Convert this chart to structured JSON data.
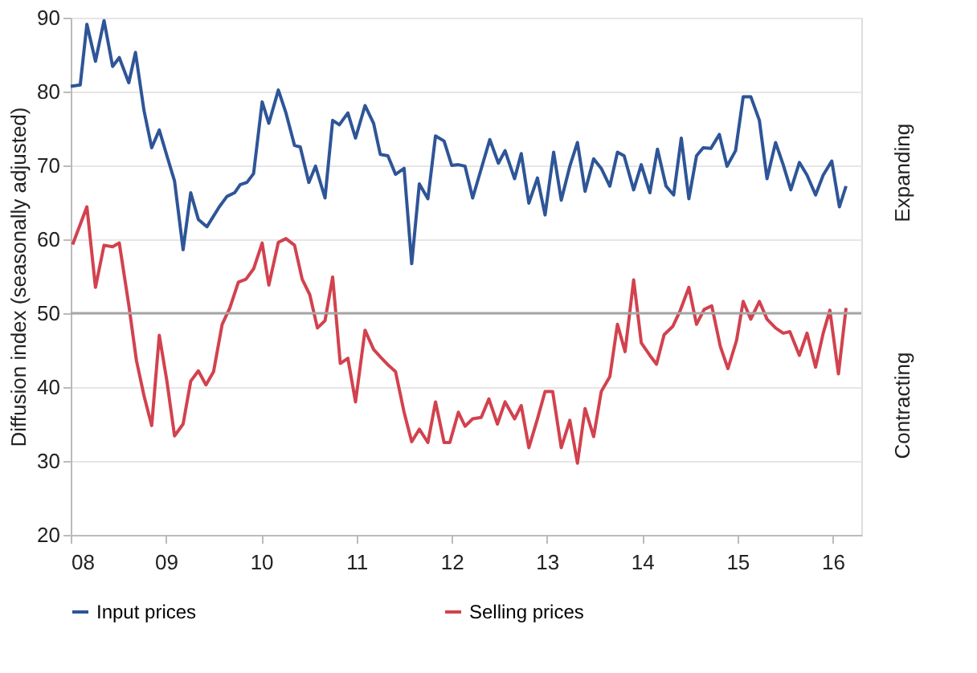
{
  "chart_data": {
    "type": "line",
    "ylabel": "Diffusion index (seasonally adjusted)",
    "xlim": [
      2008,
      2016.3
    ],
    "xticks": [
      {
        "value": 2008,
        "label": "08"
      },
      {
        "value": 2009,
        "label": "09"
      },
      {
        "value": 2010,
        "label": "10"
      },
      {
        "value": 2011,
        "label": "11"
      },
      {
        "value": 2012,
        "label": "12"
      },
      {
        "value": 2013,
        "label": "13"
      },
      {
        "value": 2014,
        "label": "14"
      },
      {
        "value": 2015,
        "label": "15"
      },
      {
        "value": 2016,
        "label": "16"
      }
    ],
    "ylim": [
      20,
      90
    ],
    "yticks": [
      20,
      30,
      40,
      50,
      60,
      70,
      80,
      90
    ],
    "grid": "y",
    "legend": "bottom",
    "marker": "none",
    "line_style": "solid",
    "ref_lines": [
      {
        "axis": "y",
        "value": 50,
        "color": "#a6a6a6"
      }
    ],
    "annotations": [
      "Expanding",
      "Contracting"
    ],
    "series": [
      {
        "name": "Input prices",
        "color": "#2e5597",
        "x": [
          2008.0,
          2008.1,
          2008.17,
          2008.26,
          2008.35,
          2008.44,
          2008.51,
          2008.61,
          2008.68,
          2008.77,
          2008.85,
          2008.93,
          2009.01,
          2009.09,
          2009.18,
          2009.26,
          2009.34,
          2009.43,
          2009.56,
          2009.64,
          2009.72,
          2009.78,
          2009.85,
          2009.92,
          2010.01,
          2010.08,
          2010.18,
          2010.26,
          2010.35,
          2010.41,
          2010.5,
          2010.57,
          2010.67,
          2010.75,
          2010.82,
          2010.91,
          2010.99,
          2011.09,
          2011.18,
          2011.25,
          2011.33,
          2011.41,
          2011.5,
          2011.58,
          2011.66,
          2011.75,
          2011.83,
          2011.92,
          2012.0,
          2012.07,
          2012.14,
          2012.22,
          2012.4,
          2012.49,
          2012.56,
          2012.66,
          2012.73,
          2012.81,
          2012.9,
          2012.98,
          2013.07,
          2013.15,
          2013.24,
          2013.32,
          2013.4,
          2013.49,
          2013.57,
          2013.66,
          2013.74,
          2013.81,
          2013.91,
          2013.99,
          2014.08,
          2014.16,
          2014.25,
          2014.33,
          2014.41,
          2014.49,
          2014.57,
          2014.64,
          2014.72,
          2014.81,
          2014.89,
          2014.98,
          2015.06,
          2015.14,
          2015.23,
          2015.31,
          2015.4,
          2015.48,
          2015.56,
          2015.65,
          2015.73,
          2015.82,
          2015.9,
          2015.99,
          2016.07,
          2016.14
        ],
        "values": [
          80.7,
          80.9,
          89.1,
          84.1,
          89.6,
          83.4,
          84.6,
          81.2,
          85.3,
          77.4,
          72.4,
          74.8,
          71.3,
          67.9,
          58.6,
          66.3,
          62.7,
          61.7,
          64.4,
          65.8,
          66.3,
          67.4,
          67.7,
          68.9,
          78.6,
          75.7,
          80.2,
          77.1,
          72.7,
          72.5,
          67.7,
          69.9,
          65.6,
          76.1,
          75.5,
          77.1,
          73.7,
          78.1,
          75.7,
          71.5,
          71.3,
          68.8,
          69.6,
          56.7,
          67.5,
          65.5,
          74.0,
          73.3,
          70.0,
          70.1,
          69.9,
          65.6,
          73.5,
          70.3,
          72.0,
          68.2,
          71.6,
          64.9,
          68.3,
          63.3,
          71.8,
          65.3,
          69.9,
          73.1,
          66.5,
          70.9,
          69.6,
          67.2,
          71.8,
          71.3,
          66.7,
          70.1,
          66.3,
          72.2,
          67.2,
          66.0,
          73.7,
          65.5,
          71.3,
          72.4,
          72.3,
          74.2,
          69.9,
          72.0,
          79.3,
          79.3,
          76.1,
          68.2,
          73.1,
          70.1,
          66.7,
          70.4,
          68.7,
          66.0,
          68.7,
          70.6,
          64.4,
          67.2
        ]
      },
      {
        "name": "Selling prices",
        "color": "#d2424e",
        "x": [
          2008.02,
          2008.17,
          2008.26,
          2008.35,
          2008.44,
          2008.51,
          2008.61,
          2008.69,
          2008.77,
          2008.85,
          2008.93,
          2009.01,
          2009.09,
          2009.18,
          2009.26,
          2009.34,
          2009.42,
          2009.5,
          2009.59,
          2009.67,
          2009.76,
          2009.84,
          2009.92,
          2010.01,
          2010.08,
          2010.18,
          2010.26,
          2010.35,
          2010.43,
          2010.51,
          2010.59,
          2010.67,
          2010.75,
          2010.83,
          2010.91,
          2010.99,
          2011.09,
          2011.18,
          2011.25,
          2011.34,
          2011.41,
          2011.5,
          2011.58,
          2011.66,
          2011.75,
          2011.83,
          2011.92,
          2011.98,
          2012.07,
          2012.14,
          2012.22,
          2012.31,
          2012.39,
          2012.48,
          2012.56,
          2012.66,
          2012.73,
          2012.81,
          2012.9,
          2012.98,
          2013.06,
          2013.15,
          2013.24,
          2013.32,
          2013.4,
          2013.49,
          2013.57,
          2013.66,
          2013.74,
          2013.82,
          2013.91,
          2013.99,
          2014.08,
          2014.15,
          2014.23,
          2014.32,
          2014.4,
          2014.49,
          2014.57,
          2014.65,
          2014.73,
          2014.82,
          2014.9,
          2014.99,
          2015.06,
          2015.14,
          2015.23,
          2015.31,
          2015.4,
          2015.48,
          2015.55,
          2015.65,
          2015.73,
          2015.82,
          2015.9,
          2015.97,
          2016.06,
          2016.14
        ],
        "values": [
          59.3,
          64.4,
          53.5,
          59.2,
          59.0,
          59.5,
          51.1,
          43.6,
          38.8,
          34.8,
          47.0,
          40.8,
          33.4,
          35.0,
          40.8,
          42.2,
          40.3,
          42.1,
          48.5,
          50.7,
          54.2,
          54.6,
          56.0,
          59.5,
          53.8,
          59.6,
          60.1,
          59.2,
          54.6,
          52.5,
          48.0,
          49.0,
          54.9,
          43.2,
          43.9,
          38.0,
          47.7,
          45.1,
          44.1,
          42.9,
          42.1,
          36.6,
          32.6,
          34.3,
          32.5,
          38.0,
          32.5,
          32.5,
          36.6,
          34.7,
          35.7,
          35.9,
          38.4,
          35.0,
          38.0,
          35.7,
          37.5,
          31.8,
          35.7,
          39.4,
          39.4,
          31.8,
          35.5,
          29.7,
          37.1,
          33.3,
          39.4,
          41.4,
          48.5,
          44.8,
          54.5,
          46.0,
          44.3,
          43.1,
          47.1,
          48.2,
          50.4,
          53.5,
          48.5,
          50.5,
          51.0,
          45.5,
          42.5,
          46.3,
          51.6,
          49.2,
          51.6,
          49.2,
          48.0,
          47.3,
          47.5,
          44.3,
          47.3,
          42.7,
          47.3,
          50.4,
          41.8,
          50.7
        ]
      }
    ]
  }
}
